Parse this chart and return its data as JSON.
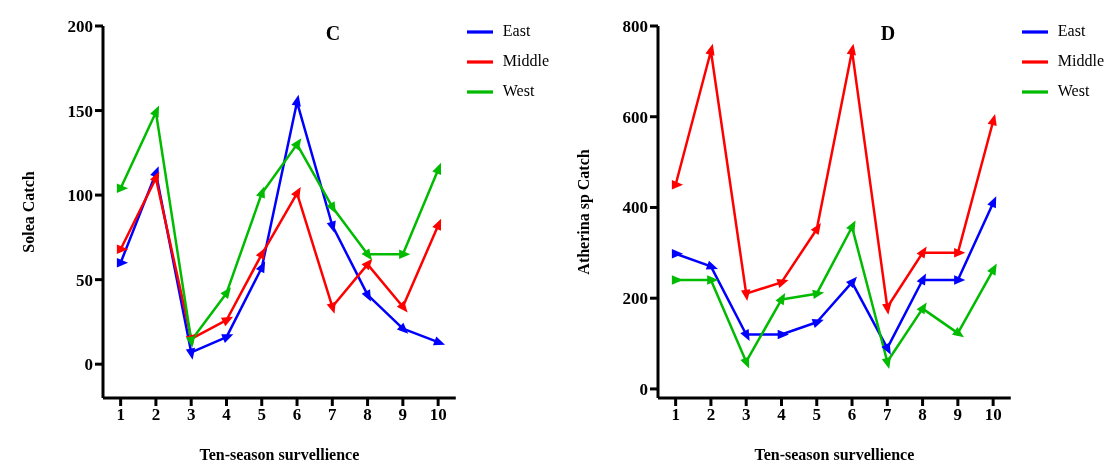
{
  "chart_data": [
    {
      "type": "line",
      "title": "C",
      "xlabel": "Ten-season survellience",
      "ylabel": "Solea Catch",
      "categories": [
        "1",
        "2",
        "3",
        "4",
        "5",
        "6",
        "7",
        "8",
        "9",
        "10"
      ],
      "ylim": [
        -20,
        200
      ],
      "yticks": [
        0,
        50,
        100,
        150,
        200
      ],
      "grid": false,
      "legend": "top right",
      "marker": "triangle",
      "line_style": "solid",
      "series": [
        {
          "name": "East",
          "color": "#0000ff",
          "values": [
            60,
            113,
            7,
            16,
            57,
            155,
            82,
            41,
            21,
            13
          ]
        },
        {
          "name": "Middle",
          "color": "#ff0000",
          "values": [
            68,
            110,
            15,
            26,
            65,
            101,
            34,
            59,
            34,
            82
          ]
        },
        {
          "name": "West",
          "color": "#00bb00",
          "values": [
            104,
            149,
            14,
            42,
            101,
            130,
            93,
            65,
            65,
            115
          ]
        }
      ]
    },
    {
      "type": "line",
      "title": "D",
      "xlabel": "Ten-season survellience",
      "ylabel": "Atherina sp Catch",
      "categories": [
        "1",
        "2",
        "3",
        "4",
        "5",
        "6",
        "7",
        "8",
        "9",
        "10"
      ],
      "ylim": [
        -20,
        800
      ],
      "yticks": [
        0,
        200,
        400,
        600,
        800
      ],
      "grid": false,
      "legend": "top right",
      "marker": "triangle",
      "line_style": "solid",
      "series": [
        {
          "name": "East",
          "color": "#0000ff",
          "values": [
            298,
            270,
            120,
            120,
            147,
            235,
            90,
            240,
            240,
            410
          ]
        },
        {
          "name": "Middle",
          "color": "#ff0000",
          "values": [
            450,
            745,
            210,
            235,
            352,
            745,
            180,
            300,
            300,
            590
          ]
        },
        {
          "name": "West",
          "color": "#00bb00",
          "values": [
            240,
            240,
            60,
            197,
            210,
            357,
            60,
            177,
            123,
            262
          ]
        }
      ]
    }
  ]
}
